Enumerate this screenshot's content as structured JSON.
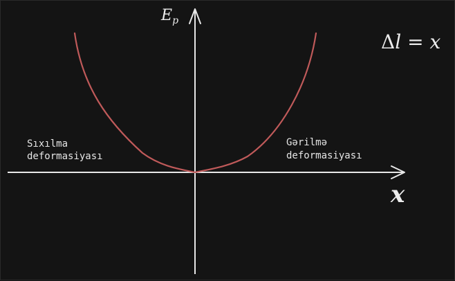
{
  "diagram": {
    "y_axis_label": {
      "base": "E",
      "sub": "p"
    },
    "x_axis_label": "x",
    "equation": {
      "delta": "Δ",
      "lhs": "l",
      "eq": " = ",
      "rhs": "x"
    },
    "left_region_label": [
      "Sıxılma",
      "deformasiyası"
    ],
    "right_region_label": [
      "Gərilmə",
      "deformasiyası"
    ],
    "curve_color": "#c05a5a",
    "axis_color": "#e8e8e8",
    "background_color": "#141414"
  }
}
